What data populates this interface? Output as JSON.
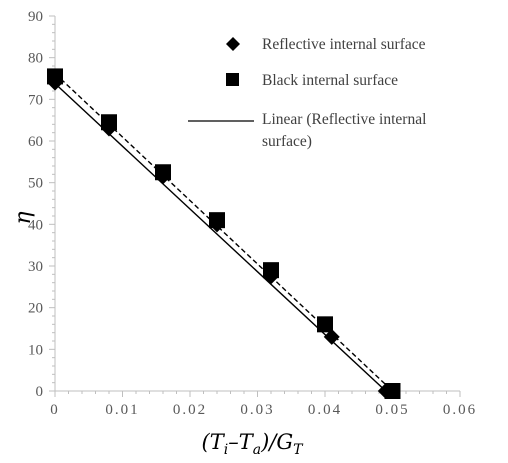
{
  "chart_data": {
    "type": "scatter",
    "xlabel_main": "(T",
    "xlabel_sub1": "i",
    "xlabel_mid": "–T",
    "xlabel_sub2": "a",
    "xlabel_end": ")/G",
    "xlabel_sub3": "T",
    "ylabel": "η",
    "xlim": [
      0,
      0.06
    ],
    "ylim": [
      0,
      90
    ],
    "x_ticks": [
      "0",
      "0.01",
      "0.02",
      "0.03",
      "0.04",
      "0.05",
      "0.06"
    ],
    "y_ticks": [
      "0",
      "10",
      "20",
      "30",
      "40",
      "50",
      "60",
      "70",
      "80",
      "90"
    ],
    "grid": false,
    "legend_position": "top-right",
    "series": [
      {
        "name": "Reflective internal surface",
        "marker": "diamond",
        "color": "#000000",
        "x": [
          0.0,
          0.008,
          0.016,
          0.024,
          0.032,
          0.04,
          0.041,
          0.049
        ],
        "y": [
          74,
          63,
          51.5,
          40,
          27.5,
          16,
          13,
          0
        ]
      },
      {
        "name": "Black internal surface",
        "marker": "square",
        "color": "#000000",
        "x": [
          0.0,
          0.008,
          0.016,
          0.024,
          0.032,
          0.04,
          0.05
        ],
        "y": [
          75.5,
          64.5,
          52.5,
          41,
          29,
          16,
          0
        ]
      }
    ],
    "trendlines": [
      {
        "name": "Linear (Reflective internal surface)",
        "style": "solid",
        "x": [
          0.0,
          0.049
        ],
        "y": [
          73.8,
          0
        ]
      },
      {
        "name": "",
        "style": "dashed",
        "x": [
          0.0,
          0.05
        ],
        "y": [
          76.2,
          0
        ]
      }
    ]
  }
}
